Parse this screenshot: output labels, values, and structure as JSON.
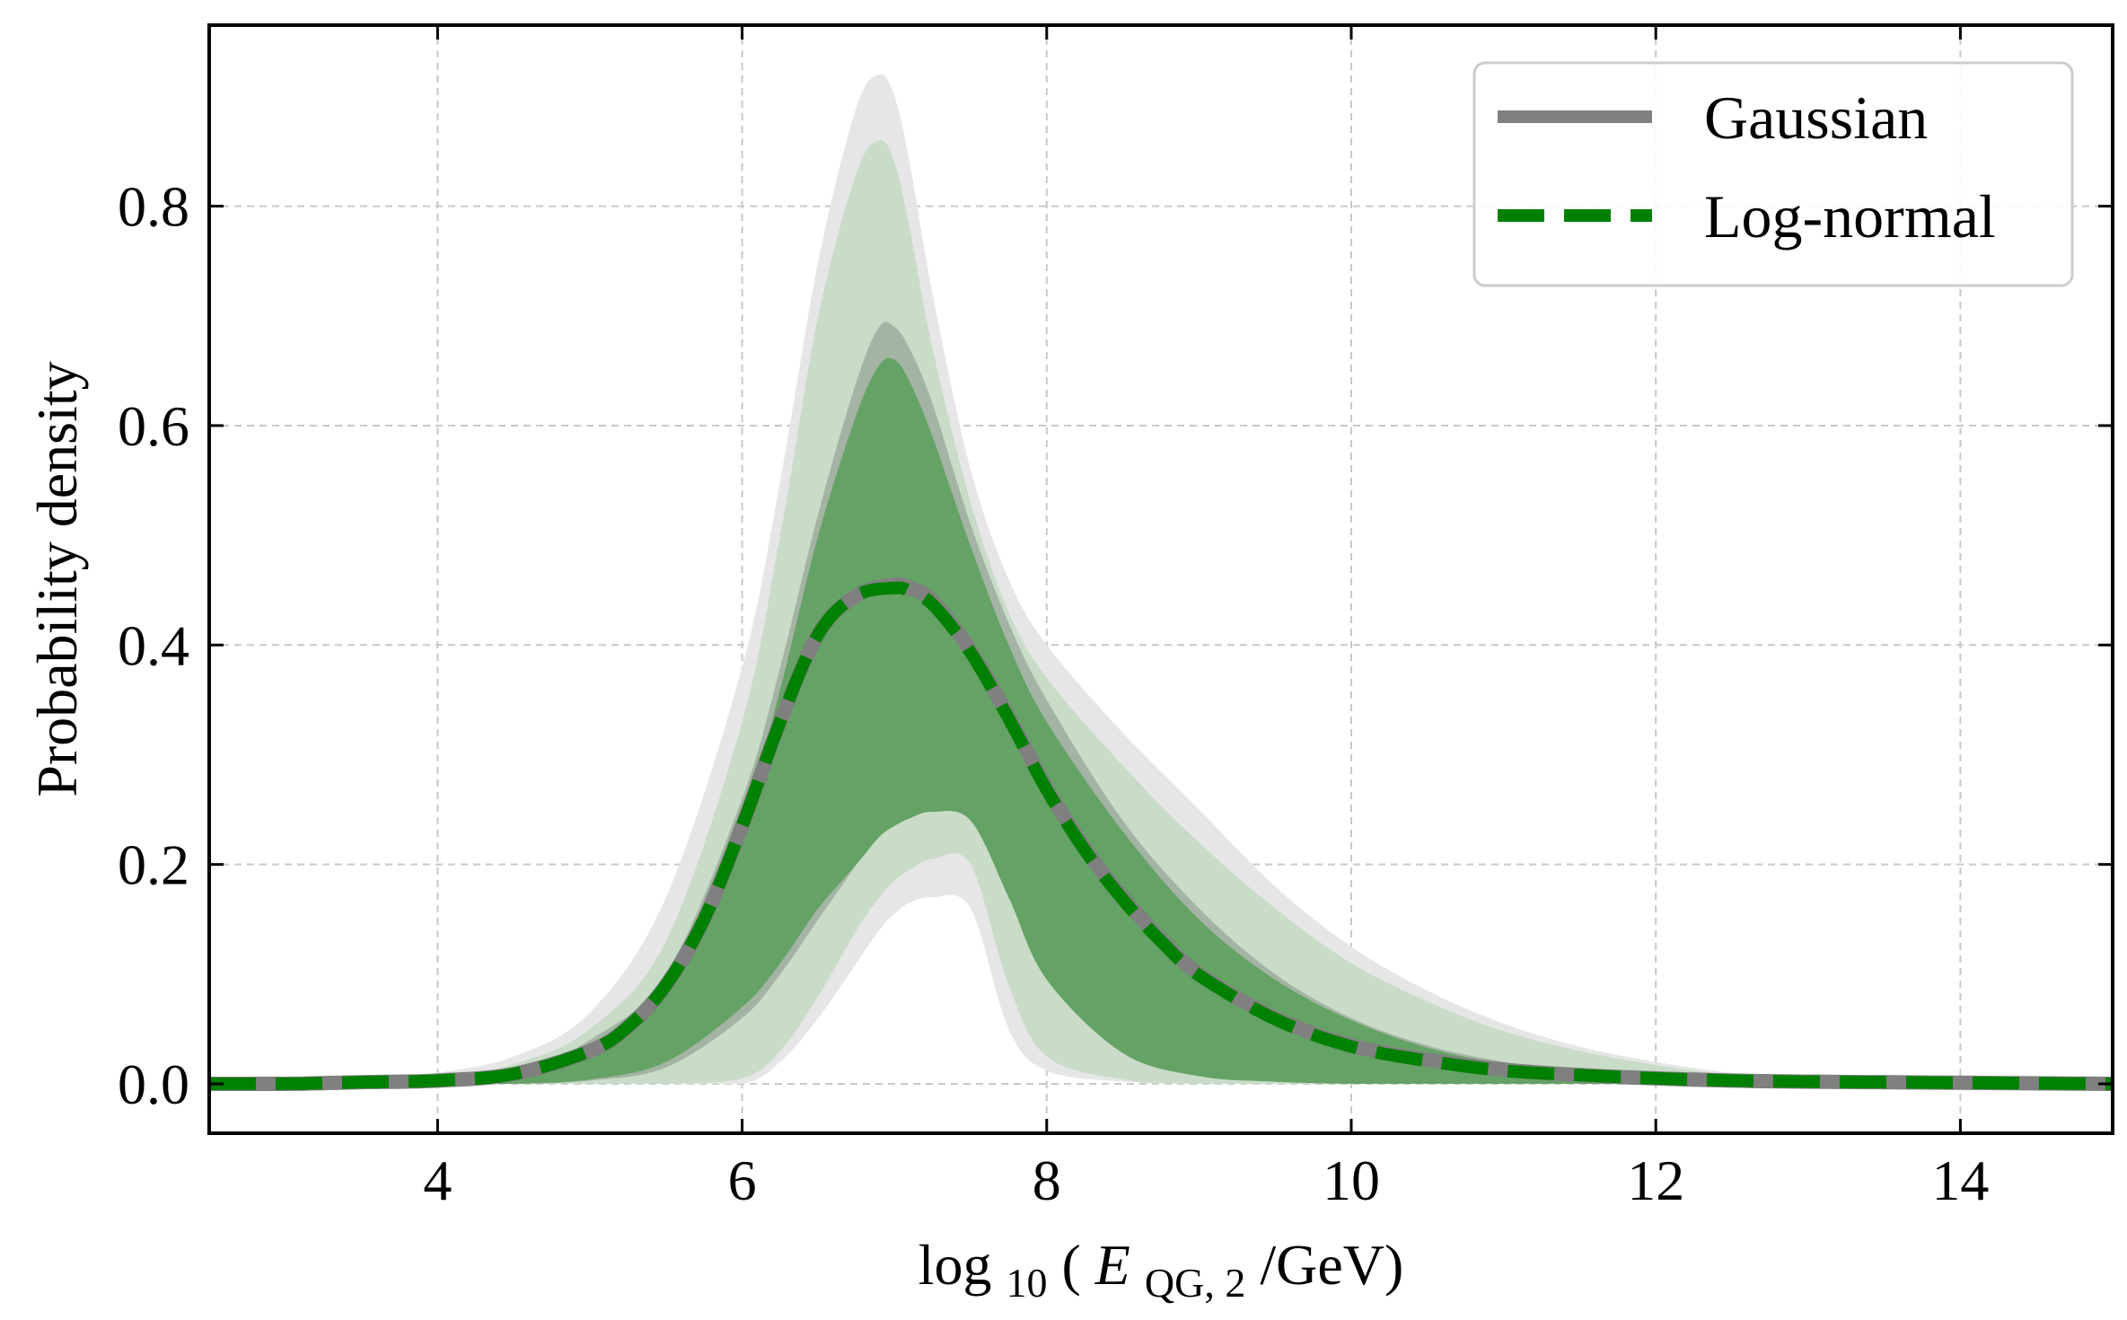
{
  "chart_data": {
    "type": "area",
    "title": "",
    "xlabel": {
      "prefix": "log",
      "subscript": "10",
      "open": "(",
      "var": "E",
      "var_subscript": "QG, 2",
      "suffix": "/GeV)"
    },
    "ylabel": "Probability density",
    "xlim": [
      2.5,
      15.0
    ],
    "ylim": [
      -0.045,
      0.965
    ],
    "xticks": [
      4,
      6,
      8,
      10,
      12,
      14
    ],
    "xtick_labels": [
      "4",
      "6",
      "8",
      "10",
      "12",
      "14"
    ],
    "yticks": [
      0.0,
      0.2,
      0.4,
      0.6,
      0.8
    ],
    "ytick_labels": [
      "0.0",
      "0.2",
      "0.4",
      "0.6",
      "0.8"
    ],
    "grid": true,
    "legend_position": "top-right",
    "legend": [
      {
        "label": "Gaussian",
        "style": "solid",
        "color": "#808080"
      },
      {
        "label": "Log-normal",
        "style": "dashed",
        "color": "#008000"
      }
    ],
    "series": [
      {
        "name": "Gaussian",
        "kind": "median-line",
        "x": [
          2.5,
          3.0,
          3.5,
          4.0,
          4.5,
          5.0,
          5.25,
          5.5,
          5.75,
          6.0,
          6.25,
          6.5,
          6.75,
          7.0,
          7.1,
          7.25,
          7.5,
          7.75,
          8.0,
          8.25,
          8.5,
          8.75,
          9.0,
          9.5,
          10.0,
          10.5,
          11.0,
          11.5,
          12.0,
          12.5,
          13.0,
          14.0,
          15.0
        ],
        "y": [
          0.0,
          0.0,
          0.0015,
          0.003,
          0.009,
          0.03,
          0.052,
          0.09,
          0.15,
          0.235,
          0.33,
          0.41,
          0.445,
          0.455,
          0.452,
          0.44,
          0.395,
          0.335,
          0.27,
          0.215,
          0.17,
          0.132,
          0.1,
          0.06,
          0.035,
          0.022,
          0.013,
          0.008,
          0.005,
          0.003,
          0.002,
          0.001,
          0.0
        ]
      },
      {
        "name": "Log-normal",
        "kind": "median-line",
        "x": [
          2.5,
          3.0,
          3.5,
          4.0,
          4.5,
          5.0,
          5.25,
          5.5,
          5.75,
          6.0,
          6.25,
          6.5,
          6.75,
          7.0,
          7.1,
          7.25,
          7.5,
          7.75,
          8.0,
          8.25,
          8.5,
          8.75,
          9.0,
          9.5,
          10.0,
          10.5,
          11.0,
          11.5,
          12.0,
          12.5,
          13.0,
          14.0,
          15.0
        ],
        "y": [
          0.0,
          0.0,
          0.0015,
          0.003,
          0.009,
          0.03,
          0.052,
          0.09,
          0.15,
          0.235,
          0.33,
          0.41,
          0.445,
          0.452,
          0.449,
          0.437,
          0.393,
          0.333,
          0.268,
          0.213,
          0.168,
          0.13,
          0.099,
          0.059,
          0.034,
          0.021,
          0.012,
          0.008,
          0.005,
          0.003,
          0.002,
          0.001,
          0.0
        ]
      }
    ],
    "bands": [
      {
        "name": "Gaussian 95% band",
        "color": "#e6e6e6",
        "x": [
          3.0,
          3.5,
          4.0,
          4.5,
          5.0,
          5.5,
          6.0,
          6.25,
          6.5,
          6.75,
          6.9,
          7.0,
          7.1,
          7.25,
          7.5,
          7.75,
          8.0,
          8.5,
          9.0,
          9.5,
          10.0,
          10.5,
          11.0,
          11.5,
          12.0,
          12.5,
          13.0,
          14.0
        ],
        "upper": [
          0.0,
          0.002,
          0.01,
          0.025,
          0.065,
          0.17,
          0.38,
          0.55,
          0.75,
          0.89,
          0.92,
          0.9,
          0.84,
          0.72,
          0.56,
          0.46,
          0.4,
          0.32,
          0.25,
          0.18,
          0.125,
          0.085,
          0.055,
          0.034,
          0.02,
          0.01,
          0.004,
          0.0
        ],
        "lower": [
          0.0,
          0.0,
          0.0,
          0.0,
          0.0,
          0.0,
          0.0,
          0.02,
          0.06,
          0.11,
          0.14,
          0.155,
          0.165,
          0.17,
          0.16,
          0.05,
          0.012,
          0.002,
          0.0,
          0.0,
          0.0,
          0.0,
          0.0,
          0.0,
          0.0,
          0.0,
          0.0,
          0.0
        ]
      },
      {
        "name": "Log-normal 95% band",
        "color": "#c8dcc8",
        "x": [
          3.0,
          3.5,
          4.0,
          4.5,
          5.0,
          5.5,
          6.0,
          6.25,
          6.5,
          6.75,
          6.9,
          7.0,
          7.1,
          7.25,
          7.5,
          7.75,
          8.0,
          8.5,
          9.0,
          9.5,
          10.0,
          10.5,
          11.0,
          11.5,
          12.0,
          12.5,
          13.0,
          14.0
        ],
        "upper": [
          0.0,
          0.001,
          0.006,
          0.018,
          0.05,
          0.13,
          0.33,
          0.5,
          0.7,
          0.83,
          0.86,
          0.84,
          0.78,
          0.67,
          0.53,
          0.43,
          0.37,
          0.29,
          0.22,
          0.16,
          0.11,
          0.075,
          0.048,
          0.03,
          0.017,
          0.008,
          0.003,
          0.0
        ],
        "lower": [
          0.0,
          0.0,
          0.0,
          0.0,
          0.0,
          0.0,
          0.005,
          0.03,
          0.08,
          0.14,
          0.17,
          0.185,
          0.195,
          0.205,
          0.2,
          0.09,
          0.025,
          0.004,
          0.0,
          0.0,
          0.0,
          0.0,
          0.0,
          0.0,
          0.0,
          0.0,
          0.0,
          0.0
        ]
      },
      {
        "name": "Gaussian 68% band",
        "color": "#a4b4a4",
        "x": [
          3.5,
          4.0,
          4.5,
          5.0,
          5.5,
          6.0,
          6.25,
          6.5,
          6.75,
          6.9,
          7.0,
          7.1,
          7.25,
          7.5,
          7.75,
          8.0,
          8.5,
          9.0,
          9.5,
          10.0,
          10.5,
          11.0,
          11.5,
          12.0,
          12.5,
          13.0
        ],
        "upper": [
          0.0,
          0.003,
          0.01,
          0.04,
          0.1,
          0.26,
          0.38,
          0.52,
          0.64,
          0.69,
          0.69,
          0.67,
          0.62,
          0.51,
          0.42,
          0.35,
          0.24,
          0.16,
          0.1,
          0.06,
          0.035,
          0.02,
          0.01,
          0.005,
          0.002,
          0.0
        ],
        "lower": [
          0.0,
          0.0,
          0.0,
          0.003,
          0.015,
          0.06,
          0.1,
          0.15,
          0.2,
          0.235,
          0.25,
          0.26,
          0.268,
          0.255,
          0.18,
          0.1,
          0.03,
          0.008,
          0.002,
          0.0,
          0.0,
          0.0,
          0.0,
          0.0,
          0.0,
          0.0
        ]
      },
      {
        "name": "Log-normal 68% band",
        "color": "#65a265",
        "x": [
          3.5,
          4.0,
          4.5,
          5.0,
          5.5,
          6.0,
          6.25,
          6.5,
          6.75,
          6.9,
          7.0,
          7.1,
          7.25,
          7.5,
          7.75,
          8.0,
          8.5,
          9.0,
          9.5,
          10.0,
          10.5,
          11.0,
          11.5,
          12.0,
          12.5,
          13.0
        ],
        "upper": [
          0.0,
          0.002,
          0.009,
          0.035,
          0.09,
          0.24,
          0.36,
          0.5,
          0.61,
          0.655,
          0.66,
          0.64,
          0.59,
          0.49,
          0.4,
          0.33,
          0.23,
          0.15,
          0.095,
          0.058,
          0.033,
          0.018,
          0.009,
          0.004,
          0.002,
          0.0
        ],
        "lower": [
          0.0,
          0.0,
          0.0,
          0.004,
          0.02,
          0.07,
          0.11,
          0.16,
          0.2,
          0.225,
          0.235,
          0.242,
          0.248,
          0.24,
          0.17,
          0.095,
          0.028,
          0.007,
          0.002,
          0.0,
          0.0,
          0.0,
          0.0,
          0.0,
          0.0,
          0.0
        ]
      }
    ]
  }
}
